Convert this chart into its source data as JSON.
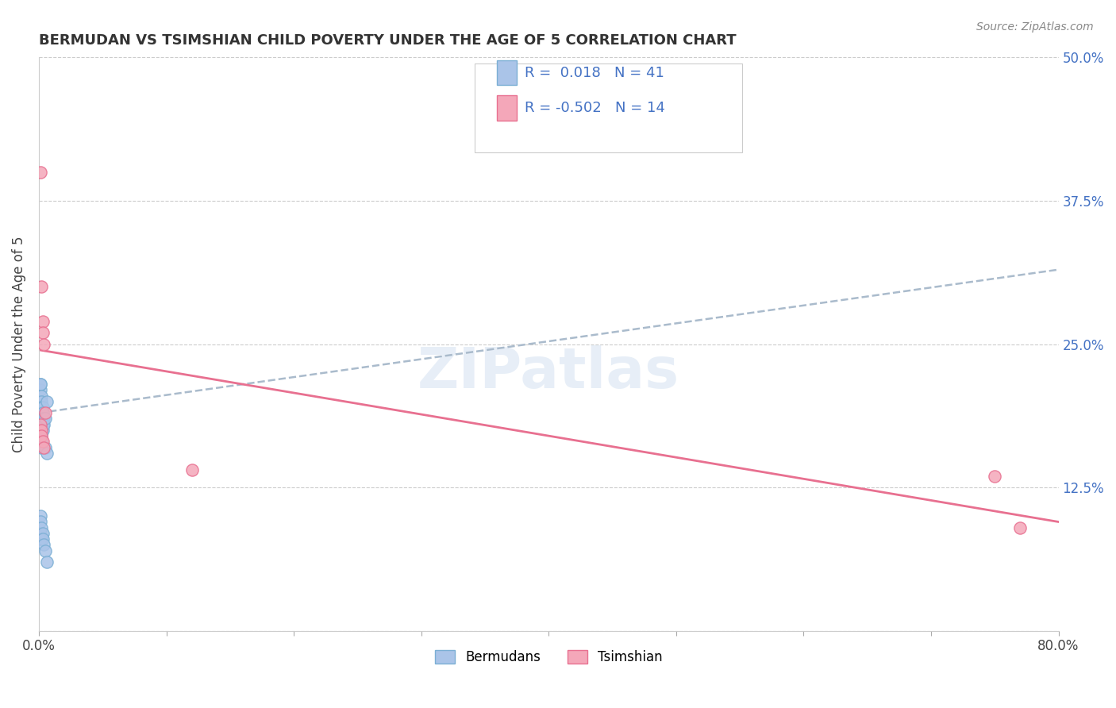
{
  "title": "BERMUDAN VS TSIMSHIAN CHILD POVERTY UNDER THE AGE OF 5 CORRELATION CHART",
  "source": "Source: ZipAtlas.com",
  "ylabel": "Child Poverty Under the Age of 5",
  "xlim": [
    0.0,
    0.8
  ],
  "ylim": [
    0.0,
    0.5
  ],
  "yticks": [
    0.0,
    0.125,
    0.25,
    0.375,
    0.5
  ],
  "ytick_labels": [
    "",
    "12.5%",
    "25.0%",
    "37.5%",
    "50.0%"
  ],
  "xticks": [
    0.0,
    0.1,
    0.2,
    0.3,
    0.4,
    0.5,
    0.6,
    0.7,
    0.8
  ],
  "xtick_labels": [
    "0.0%",
    "",
    "",
    "",
    "",
    "",
    "",
    "",
    "80.0%"
  ],
  "bermuda_color": "#aac4e8",
  "tsimshian_color": "#f4a7b9",
  "bermuda_edge_color": "#7bafd4",
  "tsimshian_edge_color": "#e87090",
  "trend_bermuda_color": "#aabbcc",
  "trend_tsimshian_color": "#e87090",
  "legend_text_color": "#4472c4",
  "watermark": "ZIPatlas",
  "R_bermuda": 0.018,
  "N_bermuda": 41,
  "R_tsimshian": -0.502,
  "N_tsimshian": 14,
  "bermuda_x": [
    0.001,
    0.001,
    0.001,
    0.001,
    0.001,
    0.001,
    0.001,
    0.001,
    0.001,
    0.001,
    0.002,
    0.002,
    0.002,
    0.002,
    0.002,
    0.002,
    0.002,
    0.002,
    0.002,
    0.003,
    0.003,
    0.003,
    0.003,
    0.003,
    0.004,
    0.004,
    0.005,
    0.005,
    0.006,
    0.006,
    0.001,
    0.001,
    0.001,
    0.001,
    0.002,
    0.002,
    0.003,
    0.003,
    0.004,
    0.005,
    0.006
  ],
  "bermuda_y": [
    0.2,
    0.21,
    0.215,
    0.215,
    0.19,
    0.195,
    0.185,
    0.18,
    0.175,
    0.17,
    0.205,
    0.2,
    0.195,
    0.19,
    0.185,
    0.18,
    0.17,
    0.165,
    0.16,
    0.195,
    0.19,
    0.185,
    0.18,
    0.175,
    0.185,
    0.18,
    0.185,
    0.16,
    0.2,
    0.155,
    0.1,
    0.095,
    0.085,
    0.08,
    0.09,
    0.08,
    0.085,
    0.08,
    0.075,
    0.07,
    0.06
  ],
  "tsimshian_x": [
    0.001,
    0.002,
    0.003,
    0.003,
    0.004,
    0.005,
    0.12,
    0.75,
    0.77,
    0.001,
    0.002,
    0.002,
    0.003,
    0.004
  ],
  "tsimshian_y": [
    0.4,
    0.3,
    0.27,
    0.26,
    0.25,
    0.19,
    0.14,
    0.135,
    0.09,
    0.18,
    0.175,
    0.17,
    0.165,
    0.16
  ],
  "trend_bermuda_x0": 0.0,
  "trend_bermuda_x1": 0.8,
  "trend_bermuda_y0": 0.19,
  "trend_bermuda_y1": 0.315,
  "trend_tsimshian_x0": 0.0,
  "trend_tsimshian_x1": 0.8,
  "trend_tsimshian_y0": 0.245,
  "trend_tsimshian_y1": 0.095
}
